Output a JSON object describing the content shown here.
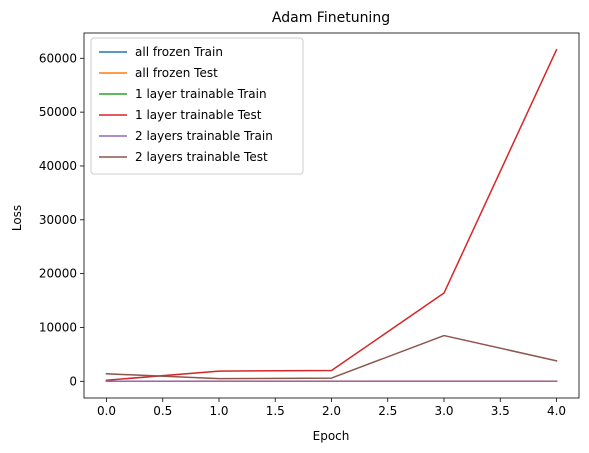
{
  "chart_data": {
    "type": "line",
    "title": "Adam Finetuning",
    "xlabel": "Epoch",
    "ylabel": "Loss",
    "xlim": [
      -0.2,
      4.2
    ],
    "ylim": [
      -3100,
      64700
    ],
    "x": [
      0,
      1,
      2,
      3,
      4
    ],
    "xticks": [
      0.0,
      0.5,
      1.0,
      1.5,
      2.0,
      2.5,
      3.0,
      3.5,
      4.0
    ],
    "xtick_labels": [
      "0.0",
      "0.5",
      "1.0",
      "1.5",
      "2.0",
      "2.5",
      "3.0",
      "3.5",
      "4.0"
    ],
    "yticks": [
      0,
      10000,
      20000,
      30000,
      40000,
      50000,
      60000
    ],
    "ytick_labels": [
      "0",
      "10000",
      "20000",
      "30000",
      "40000",
      "50000",
      "60000"
    ],
    "grid": false,
    "legend_position": "top-left",
    "series": [
      {
        "name": "all frozen Train",
        "color": "#1f77b4",
        "values": [
          5,
          5,
          5,
          5,
          5
        ]
      },
      {
        "name": "all frozen Test",
        "color": "#ff7f0e",
        "values": [
          20,
          25,
          25,
          30,
          30
        ]
      },
      {
        "name": "1 layer trainable Train",
        "color": "#2ca02c",
        "values": [
          5,
          5,
          5,
          5,
          5
        ]
      },
      {
        "name": "1 layer trainable Test",
        "color": "#d62728",
        "values": [
          200,
          1900,
          2000,
          16400,
          61600
        ]
      },
      {
        "name": "2 layers trainable Train",
        "color": "#9467bd",
        "values": [
          10,
          10,
          10,
          10,
          10
        ]
      },
      {
        "name": "2 layers trainable Test",
        "color": "#8c564b",
        "values": [
          1400,
          500,
          600,
          8500,
          3800
        ]
      }
    ]
  }
}
